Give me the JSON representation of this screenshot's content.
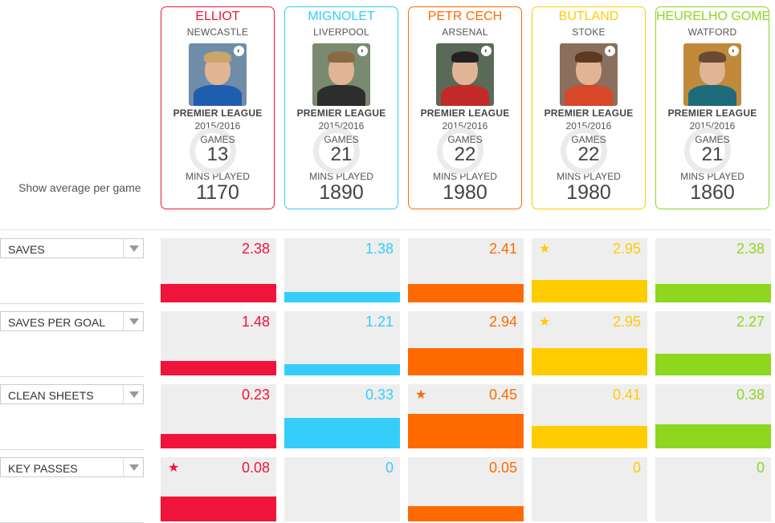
{
  "side_label": "Show average per game",
  "players": [
    {
      "name": "ELLIOT",
      "club": "NEWCASTLE",
      "league": "PREMIER LEAGUE",
      "season": "2015/2016",
      "games_label": "GAMES",
      "games": "13",
      "mins_label": "MINS PLAYED",
      "mins": "1170",
      "color": "#f0133a",
      "photo_bg": "#6f8da8",
      "hair": "#c9a56b",
      "shirt": "#1f5dae",
      "badge_icon": "club-badge-icon"
    },
    {
      "name": "MIGNOLET",
      "club": "LIVERPOOL",
      "league": "PREMIER LEAGUE",
      "season": "2015/2016",
      "games_label": "GAMES",
      "games": "21",
      "mins_label": "MINS PLAYED",
      "mins": "1890",
      "color": "#35cdfa",
      "photo_bg": "#7a8a70",
      "hair": "#8a6a45",
      "shirt": "#2d2d2d",
      "badge_icon": "club-badge-icon"
    },
    {
      "name": "PETR CECH",
      "club": "ARSENAL",
      "league": "PREMIER LEAGUE",
      "season": "2015/2016",
      "games_label": "GAMES",
      "games": "22",
      "mins_label": "MINS PLAYED",
      "mins": "1980",
      "color": "#ff6a00",
      "photo_bg": "#5a6a58",
      "hair": "#222222",
      "shirt": "#c32a2a",
      "badge_icon": "club-badge-icon"
    },
    {
      "name": "BUTLAND",
      "club": "STOKE",
      "league": "PREMIER LEAGUE",
      "season": "2015/2016",
      "games_label": "GAMES",
      "games": "22",
      "mins_label": "MINS PLAYED",
      "mins": "1980",
      "color": "#ffcc00",
      "photo_bg": "#8a6f5c",
      "hair": "#5c3a22",
      "shirt": "#d8472a",
      "badge_icon": "club-badge-icon"
    },
    {
      "name": "HEURELHO GOME",
      "club": "WATFORD",
      "league": "PREMIER LEAGUE",
      "season": "2015/2016",
      "games_label": "GAMES",
      "games": "21",
      "mins_label": "MINS PLAYED",
      "mins": "1860",
      "color": "#8fd61f",
      "photo_bg": "#c08a3a",
      "hair": "#6b4a33",
      "shirt": "#1d6b7a",
      "badge_icon": "club-badge-icon"
    }
  ],
  "stats": [
    {
      "label": "SAVES",
      "values": [
        "2.38",
        "1.38",
        "2.41",
        "2.95",
        "2.38"
      ],
      "levels": [
        0.45,
        0.25,
        0.46,
        0.55,
        0.45
      ],
      "star": 3,
      "star_color": "#ffcc00"
    },
    {
      "label": "SAVES PER GOAL",
      "values": [
        "1.48",
        "1.21",
        "2.94",
        "2.95",
        "2.27"
      ],
      "levels": [
        0.35,
        0.28,
        0.67,
        0.67,
        0.53
      ],
      "star": 3,
      "star_color": "#ffcc00"
    },
    {
      "label": "CLEAN SHEETS",
      "values": [
        "0.23",
        "0.33",
        "0.45",
        "0.41",
        "0.38"
      ],
      "levels": [
        0.35,
        0.75,
        0.85,
        0.55,
        0.6
      ],
      "star": 2,
      "star_color": "#ff6a00"
    },
    {
      "label": "KEY PASSES",
      "values": [
        "0.08",
        "0",
        "0.05",
        "0",
        "0"
      ],
      "levels": [
        0.62,
        0,
        0.38,
        0,
        0
      ],
      "star": 0,
      "star_color": "#f0133a"
    }
  ],
  "star_glyph": "★",
  "dropdown_icon": "chevron-down-icon"
}
